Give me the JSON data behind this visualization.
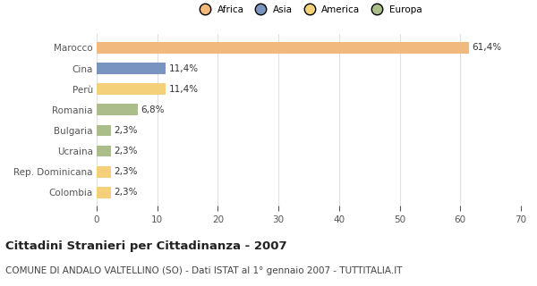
{
  "categories": [
    "Marocco",
    "Cina",
    "Perù",
    "Romania",
    "Bulgaria",
    "Ucraina",
    "Rep. Dominicana",
    "Colombia"
  ],
  "values": [
    61.4,
    11.4,
    11.4,
    6.8,
    2.3,
    2.3,
    2.3,
    2.3
  ],
  "labels": [
    "61,4%",
    "11,4%",
    "11,4%",
    "6,8%",
    "2,3%",
    "2,3%",
    "2,3%",
    "2,3%"
  ],
  "colors": [
    "#F2B97E",
    "#7A94C1",
    "#F5D07A",
    "#ABBE8A",
    "#ABBE8A",
    "#ABBE8A",
    "#F5D07A",
    "#F5D07A"
  ],
  "legend_labels": [
    "Africa",
    "Asia",
    "America",
    "Europa"
  ],
  "legend_colors": [
    "#F2B97E",
    "#7A94C1",
    "#F5D07A",
    "#ABBE8A"
  ],
  "xlim": [
    0,
    70
  ],
  "xticks": [
    0,
    10,
    20,
    30,
    40,
    50,
    60,
    70
  ],
  "title": "Cittadini Stranieri per Cittadinanza - 2007",
  "subtitle": "COMUNE DI ANDALO VALTELLINO (SO) - Dati ISTAT al 1° gennaio 2007 - TUTTITALIA.IT",
  "background_color": "#ffffff",
  "plot_bg_color": "#ffffff",
  "bar_height": 0.55,
  "label_fontsize": 7.5,
  "title_fontsize": 9.5,
  "subtitle_fontsize": 7.5,
  "tick_fontsize": 7.5
}
